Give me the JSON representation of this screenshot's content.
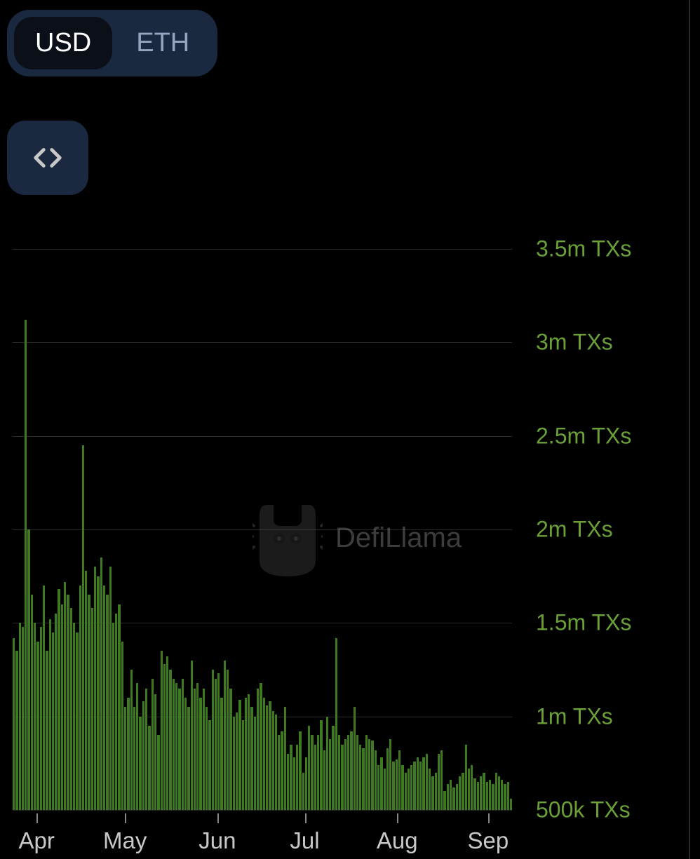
{
  "toggle": {
    "options": [
      "USD",
      "ETH"
    ],
    "active": "USD",
    "bg_color": "#1a2840",
    "active_bg": "#0a0f18",
    "active_text": "#ffffff",
    "inactive_text": "#95a4c0"
  },
  "code_button": {
    "bg_color": "#1a2840",
    "icon_color": "#c8c8c8"
  },
  "watermark": {
    "text": "DefiLlama",
    "text_color": "#888888",
    "logo_color": "#555555"
  },
  "chart": {
    "type": "bar",
    "background_color": "#000000",
    "bar_color": "#3e7a1f",
    "grid_color": "#2a2a2a",
    "y_label_color": "#6ba038",
    "x_label_color": "#c8c8c8",
    "y_axis": {
      "min": 500000,
      "max": 3500000,
      "ticks": [
        {
          "value": 3500000,
          "label": "3.5m TXs"
        },
        {
          "value": 3000000,
          "label": "3m TXs"
        },
        {
          "value": 2500000,
          "label": "2.5m TXs"
        },
        {
          "value": 2000000,
          "label": "2m TXs"
        },
        {
          "value": 1500000,
          "label": "1.5m TXs"
        },
        {
          "value": 1000000,
          "label": "1m TXs"
        },
        {
          "value": 500000,
          "label": "500k TXs"
        }
      ],
      "label_fontsize": 32
    },
    "x_axis": {
      "ticks": [
        {
          "position": 0.048,
          "label": "Apr"
        },
        {
          "position": 0.225,
          "label": "May"
        },
        {
          "position": 0.41,
          "label": "Jun"
        },
        {
          "position": 0.585,
          "label": "Jul"
        },
        {
          "position": 0.77,
          "label": "Aug"
        },
        {
          "position": 0.952,
          "label": "Sep"
        }
      ],
      "label_fontsize": 33
    },
    "values": [
      1420000,
      1350000,
      1500000,
      1480000,
      3120000,
      2000000,
      1650000,
      1500000,
      1400000,
      1480000,
      1700000,
      1350000,
      1520000,
      1450000,
      1550000,
      1680000,
      1600000,
      1720000,
      1650000,
      1580000,
      1500000,
      1450000,
      1700000,
      2450000,
      1780000,
      1650000,
      1580000,
      1800000,
      1750000,
      1850000,
      1700000,
      1650000,
      1800000,
      1500000,
      1550000,
      1600000,
      1400000,
      1050000,
      1100000,
      1250000,
      1050000,
      1180000,
      1000000,
      1080000,
      1150000,
      950000,
      1200000,
      1120000,
      900000,
      1350000,
      1280000,
      1320000,
      1250000,
      1200000,
      1180000,
      1150000,
      1200000,
      1100000,
      1050000,
      1300000,
      1150000,
      1180000,
      1100000,
      1150000,
      1050000,
      980000,
      1250000,
      1200000,
      1230000,
      1100000,
      1300000,
      1250000,
      1150000,
      1000000,
      1020000,
      1090000,
      980000,
      1100000,
      1120000,
      1050000,
      1000000,
      1150000,
      1180000,
      1100000,
      1060000,
      1080000,
      1030000,
      1010000,
      900000,
      920000,
      1050000,
      800000,
      850000,
      780000,
      850000,
      920000,
      700000,
      780000,
      950000,
      900000,
      850000,
      900000,
      980000,
      820000,
      1000000,
      880000,
      950000,
      1420000,
      900000,
      850000,
      880000,
      900000,
      920000,
      1050000,
      900000,
      850000,
      830000,
      900000,
      880000,
      870000,
      820000,
      740000,
      780000,
      720000,
      830000,
      880000,
      760000,
      770000,
      820000,
      740000,
      700000,
      720000,
      740000,
      760000,
      780000,
      760000,
      780000,
      800000,
      720000,
      680000,
      700000,
      800000,
      820000,
      600000,
      640000,
      660000,
      620000,
      640000,
      680000,
      700000,
      850000,
      720000,
      740000,
      670000,
      650000,
      680000,
      700000,
      650000,
      660000,
      640000,
      700000,
      680000,
      660000,
      640000,
      650000,
      560000
    ]
  }
}
